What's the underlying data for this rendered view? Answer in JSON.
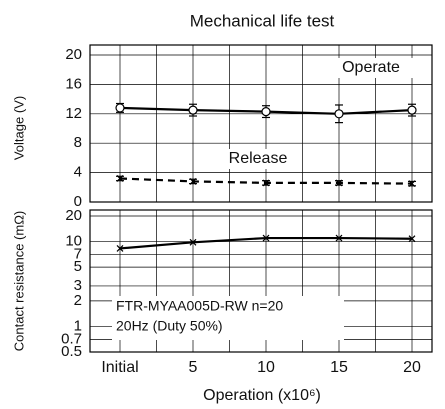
{
  "chart_data": [
    {
      "type": "line",
      "title": "Mechanical life test",
      "ylabel": "Voltage (V)",
      "ylim": [
        0,
        20
      ],
      "yticks": [
        0,
        4,
        8,
        12,
        16,
        20
      ],
      "grid": true,
      "series": [
        {
          "name": "Operate",
          "color": "#000000",
          "dash": false,
          "marker": "circle",
          "values": [
            12.8,
            12.5,
            12.3,
            12.0,
            12.5
          ],
          "errors": [
            0.6,
            0.8,
            0.8,
            1.2,
            0.8
          ]
        },
        {
          "name": "Release",
          "color": "#000000",
          "dash": true,
          "marker": "x",
          "values": [
            3.2,
            2.8,
            2.6,
            2.6,
            2.5
          ],
          "errors": [
            0.3,
            0.3,
            0.3,
            0.3,
            0.3
          ]
        }
      ]
    },
    {
      "type": "line",
      "ylabel": "Contact resistance (mΩ)",
      "xlabel": "Operation (x10⁶)",
      "categories": [
        "Initial",
        "5",
        "10",
        "15",
        "20"
      ],
      "log": true,
      "ylim": [
        0.5,
        20
      ],
      "yticks": [
        0.5,
        0.7,
        1,
        2,
        3,
        5,
        7,
        10,
        20
      ],
      "grid": true,
      "series": [
        {
          "color": "#000000",
          "dash": false,
          "marker": "x",
          "values": [
            8.3,
            9.8,
            11,
            11,
            10.8
          ]
        }
      ],
      "annotations": [
        "FTR-MYAA005D-RW  n=20",
        "20Hz (Duty 50%)"
      ]
    }
  ]
}
